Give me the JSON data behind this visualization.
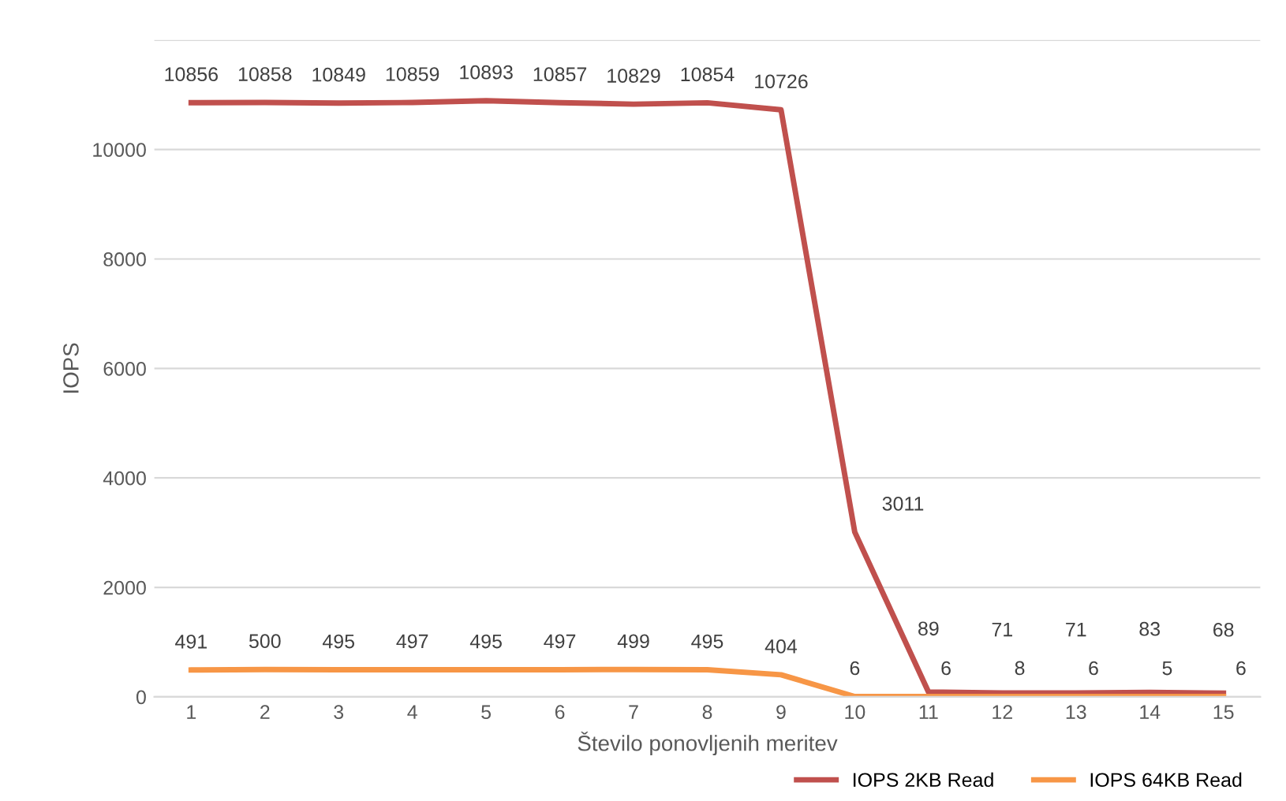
{
  "chart_data": {
    "type": "line",
    "xlabel": "Število ponovljenih meritev",
    "ylabel": "IOPS",
    "categories": [
      "1",
      "2",
      "3",
      "4",
      "5",
      "6",
      "7",
      "8",
      "9",
      "10",
      "11",
      "12",
      "13",
      "14",
      "15"
    ],
    "series": [
      {
        "name": "IOPS 2KB Read",
        "color": "#c0504d",
        "values": [
          10856,
          10858,
          10849,
          10859,
          10893,
          10857,
          10829,
          10854,
          10726,
          3011,
          89,
          71,
          71,
          83,
          68
        ]
      },
      {
        "name": "IOPS 64KB Read",
        "color": "#f79646",
        "values": [
          491,
          500,
          495,
          497,
          495,
          497,
          499,
          495,
          404,
          6,
          6,
          8,
          6,
          5,
          6
        ]
      }
    ],
    "ylim": [
      0,
      12000
    ],
    "yticks": [
      0,
      2000,
      4000,
      6000,
      8000,
      10000,
      {
        "value": 12000,
        "label": null
      }
    ],
    "grid": "y",
    "legend": "bottom right",
    "data_labels": true,
    "marker": "none",
    "line_style": "solid"
  }
}
